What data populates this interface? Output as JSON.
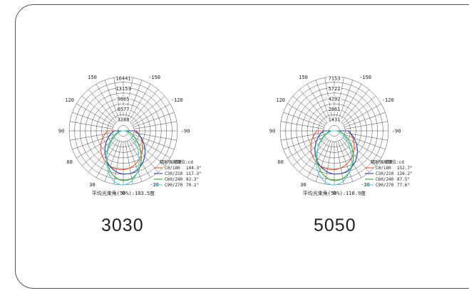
{
  "colors": {
    "C0/180": "#e8552d",
    "C30/210": "#2d3fa8",
    "C60/240": "#3aa33a",
    "C90/270": "#5bc8d8",
    "grid": "#333333",
    "frame": "#555555"
  },
  "chart_data": [
    {
      "type": "polar-line",
      "model_label": "3030",
      "radial_ticks": [
        "3288",
        "6577",
        "9865",
        "13153",
        "16441"
      ],
      "radial_max": 16441,
      "angle_labels": [
        "-150",
        "150",
        "-120",
        "120",
        "-90",
        "90",
        "-60",
        "60",
        "-30",
        "30",
        "0"
      ],
      "legend_title": "辐射强度单位:cd",
      "average_beam_label": "平均光束角(50%):103.5度",
      "series": [
        {
          "name": "C0/180",
          "beam_label": "144.3°",
          "beam_deg": 144.3,
          "color": "#e8552d"
        },
        {
          "name": "C30/210",
          "beam_label": "117.3°",
          "beam_deg": 117.3,
          "color": "#2d3fa8"
        },
        {
          "name": "C60/240",
          "beam_label": "82.3°",
          "beam_deg": 82.3,
          "color": "#3aa33a"
        },
        {
          "name": "C90/270",
          "beam_label": "70.1°",
          "beam_deg": 70.1,
          "color": "#5bc8d8"
        }
      ]
    },
    {
      "type": "polar-line",
      "model_label": "5050",
      "radial_ticks": [
        "1431",
        "2861",
        "4292",
        "5722",
        "7153"
      ],
      "radial_max": 7153,
      "angle_labels": [
        "-150",
        "150",
        "-120",
        "120",
        "-90",
        "90",
        "-60",
        "60",
        "-30",
        "30",
        "0"
      ],
      "legend_title": "辐射强度单位:cd",
      "average_beam_label": "平均光束角(50%):110.9度",
      "series": [
        {
          "name": "C0/180",
          "beam_label": "152.7°",
          "beam_deg": 152.7,
          "color": "#e8552d"
        },
        {
          "name": "C30/210",
          "beam_label": "126.2°",
          "beam_deg": 126.2,
          "color": "#2d3fa8"
        },
        {
          "name": "C60/240",
          "beam_label": "87.5°",
          "beam_deg": 87.5,
          "color": "#3aa33a"
        },
        {
          "name": "C90/270",
          "beam_label": "77.6°",
          "beam_deg": 77.6,
          "color": "#5bc8d8"
        }
      ]
    }
  ]
}
